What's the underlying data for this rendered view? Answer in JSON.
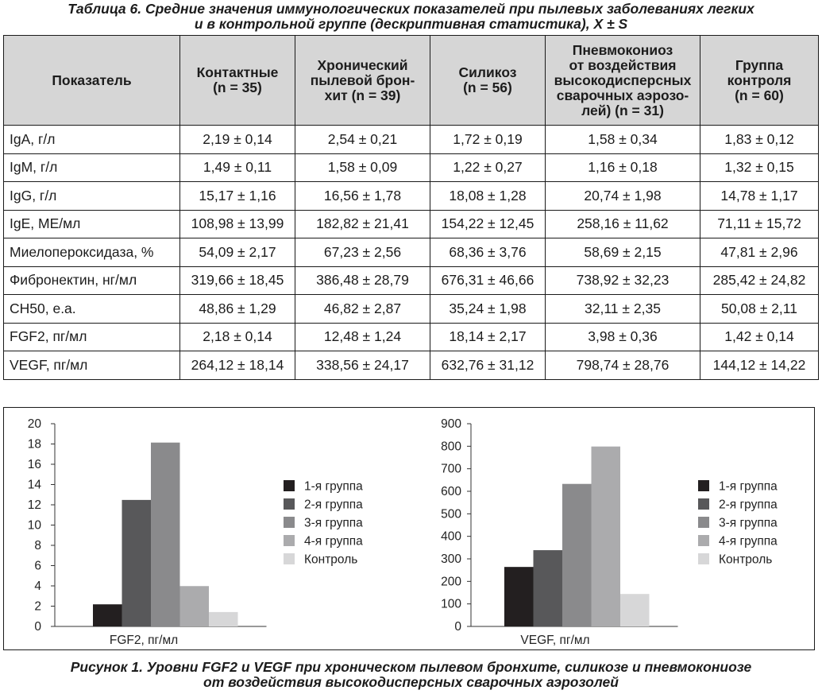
{
  "table_caption": {
    "line1": "Таблица 6. Средние значения иммунологических показателей при пылевых заболеваниях легких",
    "line2": "и в контрольной группе (дескриптивная статистика), X ± S"
  },
  "table": {
    "headers": [
      [
        "Показатель"
      ],
      [
        "Контактные",
        "(n = 35)"
      ],
      [
        "Хронический",
        "пылевой брон-",
        "хит (n = 39)"
      ],
      [
        "Силикоз",
        "(n = 56)"
      ],
      [
        "Пневмокониоз",
        "от воздействия",
        "высокодисперсных",
        "сварочных аэрозо-",
        "лей) (n = 31)"
      ],
      [
        "Группа",
        "контроля",
        "(n = 60)"
      ]
    ],
    "rows": [
      [
        "IgA, г/л",
        "2,19 ± 0,14",
        "2,54 ± 0,21",
        "1,72 ± 0,19",
        "1,58 ± 0,34",
        "1,83 ± 0,12"
      ],
      [
        "IgM, г/л",
        "1,49 ± 0,11",
        "1,58 ± 0,09",
        "1,22 ± 0,27",
        "1,16 ± 0,18",
        "1,32 ± 0,15"
      ],
      [
        "IgG, г/л",
        "15,17 ± 1,16",
        "16,56 ± 1,78",
        "18,08 ± 1,28",
        "20,74 ± 1,98",
        "14,78 ± 1,17"
      ],
      [
        "IgE, МЕ/мл",
        "108,98 ± 13,99",
        "182,82 ± 21,41",
        "154,22 ± 12,45",
        "258,16 ± 11,62",
        "71,11 ± 15,72"
      ],
      [
        "Миелопероксидаза, %",
        "54,09 ± 2,17",
        "67,23 ± 2,56",
        "68,36 ± 3,76",
        "58,69 ± 2,15",
        "47,81 ± 2,96"
      ],
      [
        "Фибронектин, нг/мл",
        "319,66 ± 18,45",
        "386,48 ± 28,79",
        "676,31 ± 46,66",
        "738,92 ± 32,23",
        "285,42 ± 24,82"
      ],
      [
        "CH50, е.а.",
        "48,86 ± 1,29",
        "46,82 ± 2,87",
        "35,24 ± 1,98",
        "32,11 ± 2,35",
        "50,08 ± 2,11"
      ],
      [
        "FGF2, пг/мл",
        "2,18 ± 0,14",
        "12,48 ± 1,24",
        "18,14 ± 2,17",
        "3,98 ± 0,36",
        "1,42 ± 0,14"
      ],
      [
        "VEGF, пг/мл",
        "264,12 ± 18,14",
        "338,56 ± 24,17",
        "632,76 ± 31,12",
        "798,74 ± 28,76",
        "144,12 ± 14,22"
      ]
    ]
  },
  "colors": [
    "#231f20",
    "#58585a",
    "#8a8a8c",
    "#ababad",
    "#d7d7d8"
  ],
  "chart_data": [
    {
      "type": "bar",
      "categories": [
        "FGF2, пг/мл"
      ],
      "xlabel": "FGF2, пг/мл",
      "ylim": [
        0,
        20
      ],
      "yticks": [
        0,
        2,
        4,
        6,
        8,
        10,
        12,
        14,
        16,
        18,
        20
      ],
      "series": [
        {
          "name": "1-я группа",
          "values": [
            2.18
          ]
        },
        {
          "name": "2-я группа",
          "values": [
            12.48
          ]
        },
        {
          "name": "3-я группа",
          "values": [
            18.14
          ]
        },
        {
          "name": "4-я группа",
          "values": [
            3.98
          ]
        },
        {
          "name": "Контроль",
          "values": [
            1.42
          ]
        }
      ],
      "legend": "right",
      "grid": false
    },
    {
      "type": "bar",
      "categories": [
        "VEGF, пг/мл"
      ],
      "xlabel": "VEGF, пг/мл",
      "ylim": [
        0,
        900
      ],
      "yticks": [
        0,
        100,
        200,
        300,
        400,
        500,
        600,
        700,
        800,
        900
      ],
      "series": [
        {
          "name": "1-я группа",
          "values": [
            264.12
          ]
        },
        {
          "name": "2-я группа",
          "values": [
            338.56
          ]
        },
        {
          "name": "3-я группа",
          "values": [
            632.76
          ]
        },
        {
          "name": "4-я группа",
          "values": [
            798.74
          ]
        },
        {
          "name": "Контроль",
          "values": [
            144.12
          ]
        }
      ],
      "legend": "right",
      "grid": false
    }
  ],
  "figure_caption": {
    "line1": "Рисунок 1. Уровни FGF2 и VEGF при хроническом пылевом бронхите, силикозе и пневмокониозе",
    "line2": "от воздействия высокодисперсных сварочных аэрозолей"
  }
}
